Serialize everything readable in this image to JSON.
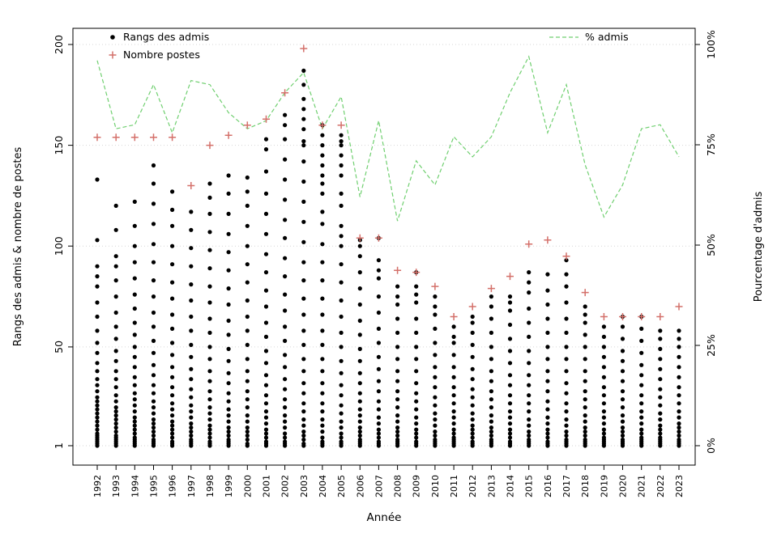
{
  "colors": {
    "ranks": "#000000",
    "postes": "#d4706a",
    "pct": "#6fcf6f",
    "grid": "#d6d6d6",
    "axis": "#000000",
    "background": "#ffffff"
  },
  "chart_data": {
    "type": "scatter",
    "title": "",
    "xlabel": "Année",
    "ylabel_left": "Rangs des admis & nombre de postes",
    "ylabel_right": "Pourcentage d'admis",
    "ylim_left": [
      1,
      200
    ],
    "ylim_right": [
      0,
      100
    ],
    "y_left_ticks": [
      1,
      50,
      100,
      150,
      200
    ],
    "y_left_tick_labels": [
      "1",
      "50",
      "100",
      "150",
      "200"
    ],
    "y_right_ticks": [
      0,
      25,
      50,
      75,
      100
    ],
    "y_right_tick_labels": [
      "0%",
      "25%",
      "50%",
      "75%",
      "100%"
    ],
    "grid": "horizontal-dotted",
    "legend_position": "top-inside",
    "categories": [
      "1992",
      "1993",
      "1994",
      "1995",
      "1996",
      "1997",
      "1998",
      "1999",
      "2000",
      "2001",
      "2002",
      "2003",
      "2004",
      "2005",
      "2006",
      "2007",
      "2008",
      "2009",
      "2010",
      "2011",
      "2012",
      "2013",
      "2014",
      "2015",
      "2016",
      "2017",
      "2018",
      "2019",
      "2020",
      "2021",
      "2022",
      "2023"
    ],
    "series": [
      {
        "name": "Rangs des admis",
        "type": "scatter",
        "marker": "dot",
        "color": "#000000",
        "axis": "left",
        "values_per_year": [
          [
            1,
            2,
            3,
            4,
            5,
            6,
            7,
            9,
            11,
            13,
            15,
            17,
            19,
            21,
            23,
            25,
            28,
            31,
            34,
            38,
            42,
            47,
            52,
            58,
            65,
            72,
            80,
            85,
            90,
            103,
            133
          ],
          [
            1,
            2,
            3,
            4,
            5,
            6,
            8,
            10,
            12,
            14,
            16,
            18,
            20,
            23,
            26,
            30,
            34,
            38,
            43,
            48,
            54,
            60,
            67,
            75,
            83,
            90,
            95,
            108,
            120
          ],
          [
            1,
            2,
            3,
            4,
            5,
            7,
            9,
            11,
            13,
            15,
            18,
            21,
            24,
            27,
            31,
            35,
            40,
            45,
            50,
            56,
            62,
            69,
            76,
            84,
            92,
            100,
            110,
            122
          ],
          [
            1,
            2,
            3,
            4,
            6,
            8,
            10,
            12,
            14,
            17,
            20,
            23,
            27,
            31,
            36,
            41,
            47,
            53,
            60,
            67,
            75,
            83,
            92,
            101,
            111,
            121,
            131,
            140
          ],
          [
            1,
            2,
            3,
            5,
            7,
            9,
            11,
            13,
            16,
            19,
            22,
            26,
            30,
            35,
            40,
            46,
            52,
            59,
            66,
            74,
            82,
            91,
            100,
            110,
            118,
            127
          ],
          [
            1,
            2,
            3,
            4,
            6,
            8,
            10,
            12,
            15,
            18,
            21,
            25,
            29,
            34,
            39,
            45,
            51,
            58,
            65,
            73,
            81,
            90,
            99,
            108,
            117
          ],
          [
            1,
            2,
            3,
            5,
            7,
            9,
            11,
            14,
            17,
            20,
            24,
            28,
            33,
            38,
            44,
            50,
            57,
            64,
            72,
            80,
            89,
            98,
            107,
            116,
            124,
            131
          ],
          [
            1,
            2,
            3,
            4,
            6,
            8,
            10,
            13,
            16,
            19,
            23,
            27,
            32,
            37,
            43,
            49,
            56,
            63,
            71,
            79,
            88,
            97,
            106,
            116,
            126,
            135
          ],
          [
            1,
            2,
            4,
            6,
            8,
            10,
            13,
            16,
            20,
            24,
            28,
            33,
            38,
            44,
            51,
            58,
            65,
            73,
            82,
            91,
            100,
            110,
            120,
            127,
            134
          ],
          [
            1,
            2,
            3,
            5,
            7,
            9,
            12,
            15,
            18,
            22,
            26,
            31,
            36,
            42,
            48,
            55,
            62,
            70,
            78,
            87,
            96,
            106,
            116,
            126,
            137,
            148,
            153
          ],
          [
            1,
            2,
            3,
            5,
            7,
            10,
            13,
            16,
            20,
            24,
            29,
            34,
            40,
            46,
            53,
            60,
            68,
            76,
            85,
            94,
            104,
            113,
            123,
            133,
            143,
            153,
            160,
            165
          ],
          [
            1,
            2,
            4,
            6,
            8,
            11,
            14,
            18,
            22,
            27,
            32,
            38,
            44,
            51,
            58,
            66,
            74,
            83,
            92,
            102,
            112,
            122,
            132,
            142,
            150,
            152,
            158,
            163,
            168,
            173,
            180,
            187
          ],
          [
            1,
            2,
            3,
            5,
            8,
            11,
            14,
            18,
            22,
            27,
            32,
            38,
            44,
            51,
            58,
            66,
            74,
            83,
            92,
            101,
            111,
            117,
            126,
            131,
            135,
            140,
            145,
            150,
            155,
            160
          ],
          [
            1,
            2,
            3,
            5,
            7,
            10,
            13,
            17,
            21,
            26,
            31,
            37,
            43,
            50,
            57,
            65,
            73,
            82,
            91,
            100,
            105,
            110,
            120,
            126,
            135,
            140,
            145,
            150,
            152,
            155
          ],
          [
            1,
            2,
            3,
            4,
            6,
            8,
            10,
            13,
            16,
            19,
            23,
            27,
            32,
            37,
            43,
            49,
            56,
            63,
            71,
            79,
            87,
            95,
            100,
            103
          ],
          [
            1,
            2,
            3,
            5,
            7,
            9,
            12,
            15,
            19,
            23,
            28,
            33,
            39,
            45,
            52,
            59,
            67,
            75,
            84,
            88,
            93,
            104
          ],
          [
            1,
            2,
            3,
            4,
            6,
            8,
            10,
            13,
            16,
            20,
            24,
            28,
            33,
            38,
            44,
            50,
            57,
            64,
            71,
            75,
            80
          ],
          [
            1,
            2,
            3,
            5,
            7,
            9,
            12,
            15,
            19,
            23,
            27,
            32,
            38,
            44,
            50,
            57,
            64,
            72,
            76,
            80,
            87
          ],
          [
            1,
            2,
            3,
            4,
            6,
            8,
            11,
            14,
            17,
            21,
            25,
            30,
            35,
            40,
            46,
            52,
            59,
            66,
            70,
            75
          ],
          [
            1,
            2,
            3,
            4,
            5,
            7,
            9,
            12,
            15,
            18,
            22,
            26,
            30,
            35,
            40,
            46,
            52,
            55,
            60
          ],
          [
            1,
            2,
            3,
            5,
            7,
            9,
            11,
            14,
            17,
            21,
            25,
            29,
            34,
            39,
            45,
            51,
            57,
            62,
            65
          ],
          [
            1,
            2,
            3,
            4,
            6,
            8,
            10,
            13,
            16,
            20,
            24,
            28,
            33,
            38,
            44,
            50,
            57,
            64,
            70,
            75
          ],
          [
            1,
            2,
            3,
            5,
            7,
            9,
            12,
            15,
            18,
            22,
            26,
            31,
            36,
            42,
            48,
            54,
            61,
            68,
            72,
            75
          ],
          [
            1,
            2,
            3,
            4,
            6,
            8,
            11,
            14,
            18,
            22,
            26,
            31,
            36,
            42,
            48,
            55,
            62,
            69,
            77,
            82,
            87
          ],
          [
            1,
            2,
            3,
            5,
            7,
            9,
            12,
            15,
            19,
            23,
            28,
            33,
            38,
            44,
            50,
            57,
            64,
            71,
            78,
            86
          ],
          [
            1,
            2,
            3,
            4,
            6,
            8,
            11,
            14,
            18,
            22,
            27,
            32,
            38,
            44,
            50,
            57,
            64,
            72,
            80,
            86,
            93
          ],
          [
            1,
            2,
            3,
            4,
            6,
            8,
            10,
            13,
            16,
            20,
            24,
            28,
            33,
            38,
            44,
            50,
            56,
            62,
            66,
            70
          ],
          [
            1,
            2,
            3,
            4,
            5,
            7,
            9,
            12,
            15,
            18,
            22,
            26,
            30,
            35,
            40,
            45,
            50,
            55,
            60
          ],
          [
            1,
            2,
            3,
            4,
            6,
            8,
            10,
            13,
            16,
            20,
            24,
            28,
            33,
            38,
            43,
            48,
            54,
            60,
            65
          ],
          [
            1,
            2,
            3,
            4,
            5,
            7,
            9,
            12,
            15,
            18,
            22,
            26,
            31,
            36,
            41,
            47,
            53,
            59,
            65
          ],
          [
            1,
            2,
            3,
            4,
            5,
            7,
            9,
            11,
            14,
            17,
            21,
            25,
            29,
            34,
            39,
            44,
            49,
            54,
            58
          ],
          [
            1,
            2,
            3,
            4,
            6,
            8,
            10,
            12,
            15,
            18,
            22,
            26,
            30,
            35,
            40,
            45,
            50,
            54,
            58
          ]
        ]
      },
      {
        "name": "Nombre postes",
        "type": "scatter",
        "marker": "plus",
        "color": "#d4706a",
        "axis": "left",
        "values": [
          154,
          154,
          154,
          154,
          154,
          130,
          150,
          155,
          160,
          163,
          176,
          198,
          160,
          160,
          104,
          104,
          88,
          87,
          80,
          65,
          70,
          79,
          85,
          101,
          103,
          95,
          77,
          65,
          65,
          65,
          65,
          70
        ]
      },
      {
        "name": "% admis",
        "type": "line",
        "style": "dashed",
        "color": "#6fcf6f",
        "axis": "right",
        "values": [
          96,
          79,
          80,
          90,
          78,
          91,
          90,
          83,
          79,
          81,
          88,
          93,
          79,
          87,
          62,
          81,
          56,
          71,
          65,
          77,
          72,
          77,
          88,
          97,
          78,
          90,
          70,
          57,
          65,
          79,
          80,
          72
        ]
      }
    ]
  }
}
